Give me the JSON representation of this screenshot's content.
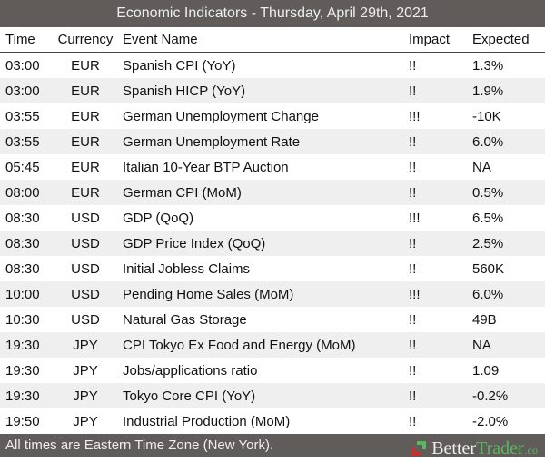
{
  "title": "Economic Indicators - Thursday, April 29th, 2021",
  "columns": {
    "time": "Time",
    "currency": "Currency",
    "event": "Event Name",
    "impact": "Impact",
    "expected": "Expected"
  },
  "rows": [
    {
      "time": "03:00",
      "currency": "EUR",
      "event": "Spanish CPI (YoY)",
      "impact": "!!",
      "expected": "1.3%"
    },
    {
      "time": "03:00",
      "currency": "EUR",
      "event": "Spanish HICP (YoY)",
      "impact": "!!",
      "expected": "1.9%"
    },
    {
      "time": "03:55",
      "currency": "EUR",
      "event": "German Unemployment Change",
      "impact": "!!!",
      "expected": "-10K"
    },
    {
      "time": "03:55",
      "currency": "EUR",
      "event": "German Unemployment Rate",
      "impact": "!!",
      "expected": "6.0%"
    },
    {
      "time": "05:45",
      "currency": "EUR",
      "event": "Italian 10-Year BTP Auction",
      "impact": "!!",
      "expected": "NA"
    },
    {
      "time": "08:00",
      "currency": "EUR",
      "event": "German CPI (MoM)",
      "impact": "!!",
      "expected": "0.5%"
    },
    {
      "time": "08:30",
      "currency": "USD",
      "event": "GDP (QoQ)",
      "impact": "!!!",
      "expected": "6.5%"
    },
    {
      "time": "08:30",
      "currency": "USD",
      "event": "GDP Price Index (QoQ)",
      "impact": "!!",
      "expected": "2.5%"
    },
    {
      "time": "08:30",
      "currency": "USD",
      "event": "Initial Jobless Claims",
      "impact": "!!",
      "expected": "560K"
    },
    {
      "time": "10:00",
      "currency": "USD",
      "event": "Pending Home Sales (MoM)",
      "impact": "!!!",
      "expected": "6.0%"
    },
    {
      "time": "10:30",
      "currency": "USD",
      "event": "Natural Gas Storage",
      "impact": "!!",
      "expected": "49B"
    },
    {
      "time": "19:30",
      "currency": "JPY",
      "event": "CPI Tokyo Ex Food and Energy (MoM)",
      "impact": "!!",
      "expected": "NA"
    },
    {
      "time": "19:30",
      "currency": "JPY",
      "event": "Jobs/applications ratio",
      "impact": "!!",
      "expected": "1.09"
    },
    {
      "time": "19:30",
      "currency": "JPY",
      "event": "Tokyo Core CPI (YoY)",
      "impact": "!!",
      "expected": "-0.2%"
    },
    {
      "time": "19:50",
      "currency": "JPY",
      "event": "Industrial Production (MoM)",
      "impact": "!!",
      "expected": "-2.0%"
    }
  ],
  "footer": {
    "note": "All times are Eastern Time Zone (New York).",
    "logo_better": "Better",
    "logo_trader": "Trader",
    "logo_co": ".co"
  },
  "colors": {
    "header_bg": "#5f5c5a",
    "logo_green": "#5cb85c",
    "logo_red": "#c9302c"
  }
}
